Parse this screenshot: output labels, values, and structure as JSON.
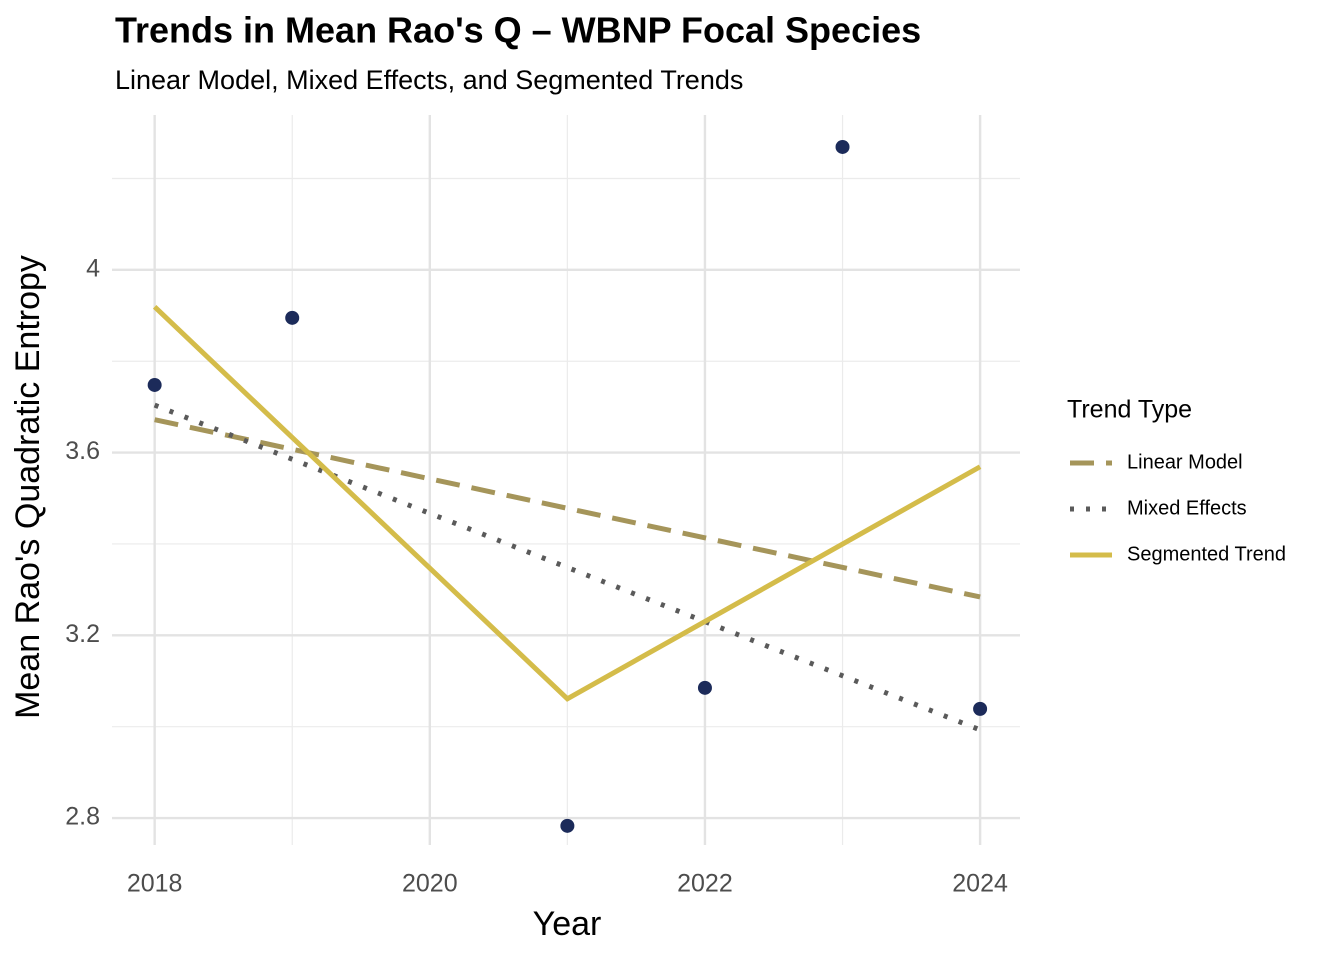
{
  "chart_data": {
    "type": "line",
    "title": "Trends in Mean Rao's Q – WBNP Focal Species",
    "subtitle": "Linear Model, Mixed Effects, and Segmented Trends",
    "x_label": "Year",
    "y_label": "Mean Rao's Quadratic Entropy",
    "xlim": [
      2017.69,
      2024.29
    ],
    "ylim": [
      2.741,
      4.339
    ],
    "xticks": [
      2018,
      2020,
      2022,
      2024
    ],
    "yticks": [
      2.8,
      3.2,
      3.6,
      4.0
    ],
    "x_minor_grid": [
      2019,
      2021,
      2023
    ],
    "y_minor_grid": [
      3.0,
      3.4,
      3.8,
      4.2
    ],
    "grid": true,
    "legend_title": "Trend Type",
    "legend_position": "right",
    "points": {
      "color": "#1c2b5a",
      "x": [
        2018,
        2019,
        2021,
        2022,
        2023,
        2024
      ],
      "values": [
        3.748,
        3.895,
        2.783,
        3.085,
        4.269,
        3.039
      ]
    },
    "series": [
      {
        "name": "Linear Model",
        "color": "#a5955a",
        "dash": "dashed",
        "x": [
          2018,
          2024
        ],
        "values": [
          3.672,
          3.284
        ]
      },
      {
        "name": "Mixed Effects",
        "color": "#5a5a5a",
        "dash": "dotted",
        "x": [
          2018,
          2024
        ],
        "values": [
          3.704,
          2.993
        ]
      },
      {
        "name": "Segmented Trend",
        "color": "#d4bc4a",
        "dash": "solid",
        "x": [
          2018,
          2021,
          2024
        ],
        "values": [
          3.919,
          3.061,
          3.569
        ]
      }
    ]
  }
}
